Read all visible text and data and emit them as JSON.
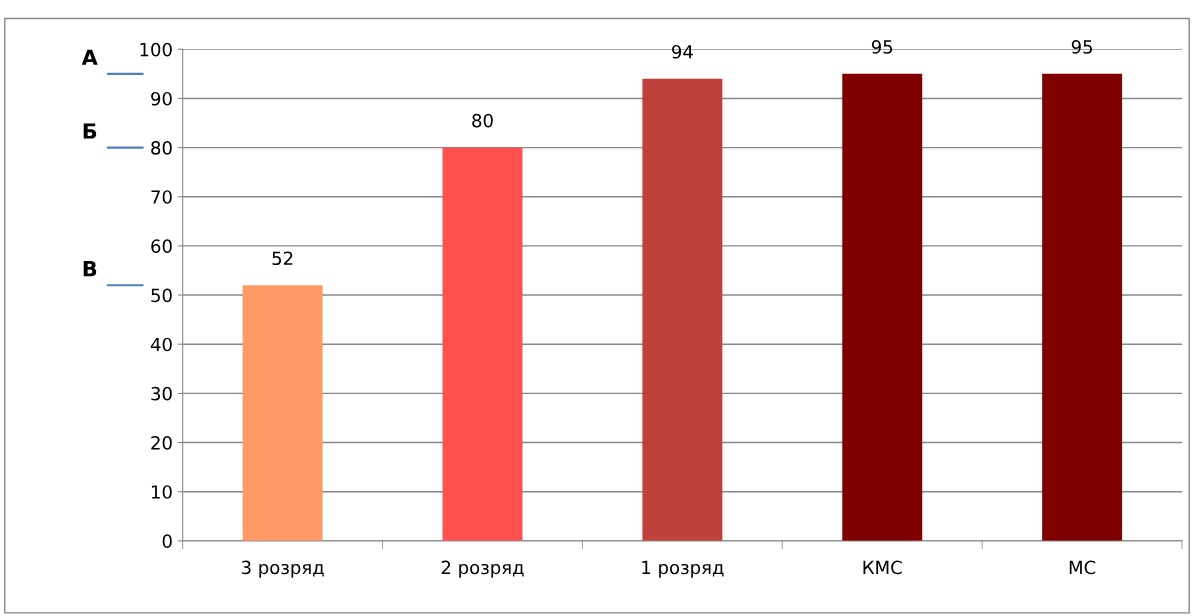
{
  "chart_data": {
    "type": "bar",
    "categories": [
      "3 розряд",
      "2 розряд",
      "1 розряд",
      "КМС",
      "МС"
    ],
    "values": [
      52,
      80,
      94,
      95,
      95
    ],
    "colors": [
      "#ff9966",
      "#ff5050",
      "#c0403c",
      "#800000",
      "#800000"
    ],
    "ylim": [
      0,
      100
    ],
    "yticks": [
      0,
      10,
      20,
      30,
      40,
      50,
      60,
      70,
      80,
      90,
      100
    ],
    "grid": "y",
    "data_labels": true,
    "ref_lines": [
      {
        "axis": "y",
        "value": 95,
        "label": "А",
        "color": "#4f81bd"
      },
      {
        "axis": "y",
        "value": 80,
        "label": "Б",
        "color": "#4f81bd"
      },
      {
        "axis": "y",
        "value": 52,
        "label": "В",
        "color": "#4f81bd"
      }
    ]
  }
}
